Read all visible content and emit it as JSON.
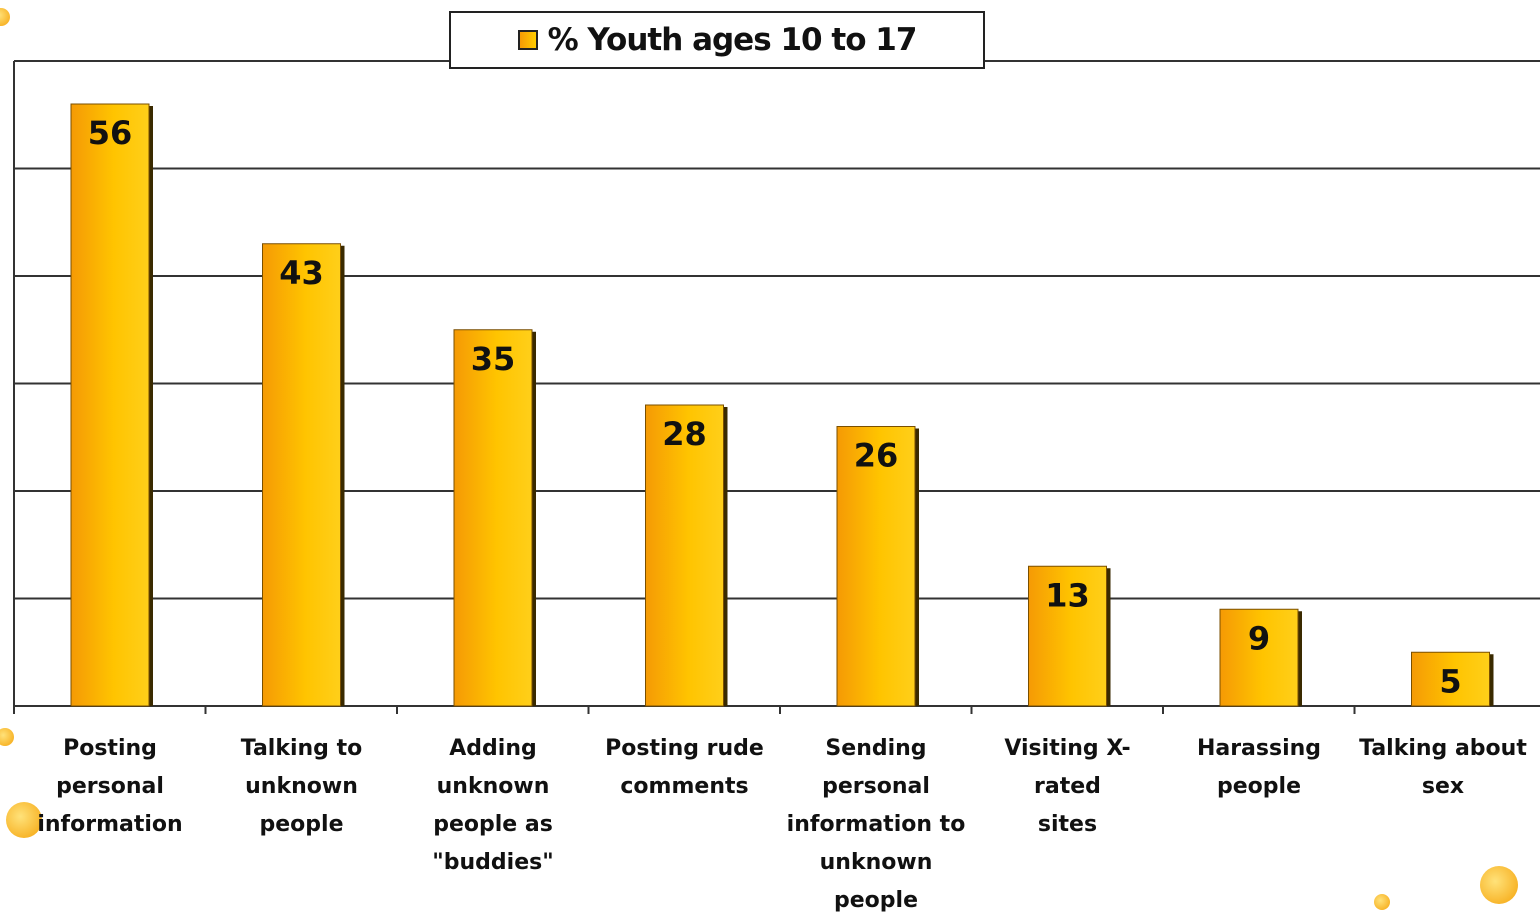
{
  "legend": {
    "label": "% Youth ages 10 to 17"
  },
  "colors": {
    "bar_light": "#ffcc00",
    "bar_dark": "#f59a05",
    "gridline": "#333333",
    "text": "#111111"
  },
  "chart_data": {
    "type": "bar",
    "categories": [
      "Posting personal information",
      "Talking to unknown people",
      "Adding unknown people as \"buddies\"",
      "Posting rude comments",
      "Sending personal information to unknown people",
      "Visiting X-rated sites",
      "Harassing people",
      "Talking about sex"
    ],
    "series": [
      {
        "name": "% Youth ages 10 to 17",
        "values": [
          56,
          43,
          35,
          28,
          26,
          13,
          9,
          5
        ]
      }
    ],
    "data_labels": [
      "56",
      "43",
      "35",
      "28",
      "26",
      "13",
      "9",
      "5"
    ],
    "ylim": [
      0,
      60
    ],
    "y_grid_step": 10,
    "grid": true,
    "legend_position": "top-center",
    "title": "",
    "xlabel": "",
    "ylabel": ""
  }
}
